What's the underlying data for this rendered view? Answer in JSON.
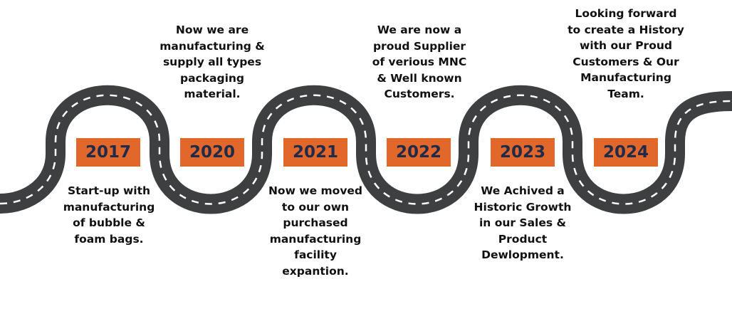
{
  "milestones": [
    {
      "year": "2017",
      "lines": [
        "Start-up with",
        "manufacturing",
        "of bubble &",
        "foam bags."
      ]
    },
    {
      "year": "2020",
      "lines": [
        "Now we are",
        "manufacturing &",
        "supply all types",
        "packaging",
        "material."
      ]
    },
    {
      "year": "2021",
      "lines": [
        "Now we moved",
        "to our own",
        "purchased",
        "manufacturing",
        "facility",
        "expantion."
      ]
    },
    {
      "year": "2022",
      "lines": [
        "We are now a",
        "proud Supplier",
        "of verious MNC",
        "& Well known",
        "Customers."
      ]
    },
    {
      "year": "2023",
      "lines": [
        "We Achived a",
        "Historic Growth",
        "in our Sales &",
        "Product",
        "Dewlopment."
      ]
    },
    {
      "year": "2024",
      "lines": [
        "Looking forward",
        "to create a History",
        "with our Proud",
        "Customers & Our",
        "Manufacturing",
        "Team."
      ]
    }
  ],
  "colors": {
    "road": "#3d3f41",
    "dash": "#ffffff",
    "badge": "#e2672a",
    "year_text": "#1f2b4a",
    "text": "#111111"
  }
}
